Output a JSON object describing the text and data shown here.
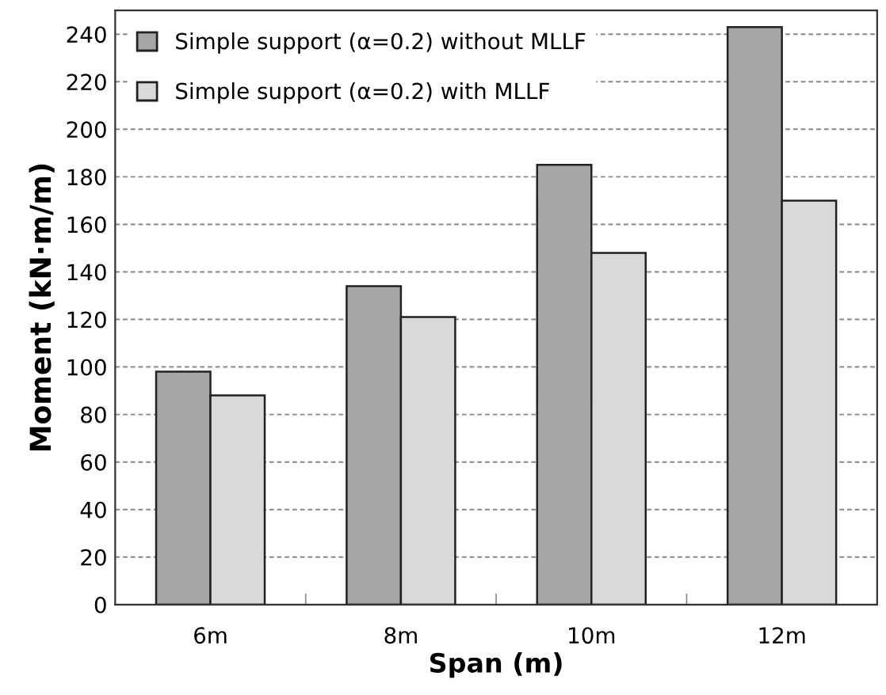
{
  "chart_data": {
    "type": "bar",
    "xlabel": "Span (m)",
    "ylabel": "Moment (kN·m/m)",
    "categories": [
      "6m",
      "8m",
      "10m",
      "12m"
    ],
    "series": [
      {
        "name": "Simple support (α=0.2) without MLLF",
        "color": "#a6a6a6",
        "values": [
          98,
          134,
          185,
          243
        ]
      },
      {
        "name": "Simple support (α=0.2) with MLLF",
        "color": "#d9d9d9",
        "values": [
          88,
          121,
          148,
          170
        ]
      }
    ],
    "ylim": [
      0,
      250
    ],
    "yticks": [
      0,
      20,
      40,
      60,
      80,
      100,
      120,
      140,
      160,
      180,
      200,
      220,
      240
    ],
    "grid": "y",
    "legend": "top left"
  }
}
